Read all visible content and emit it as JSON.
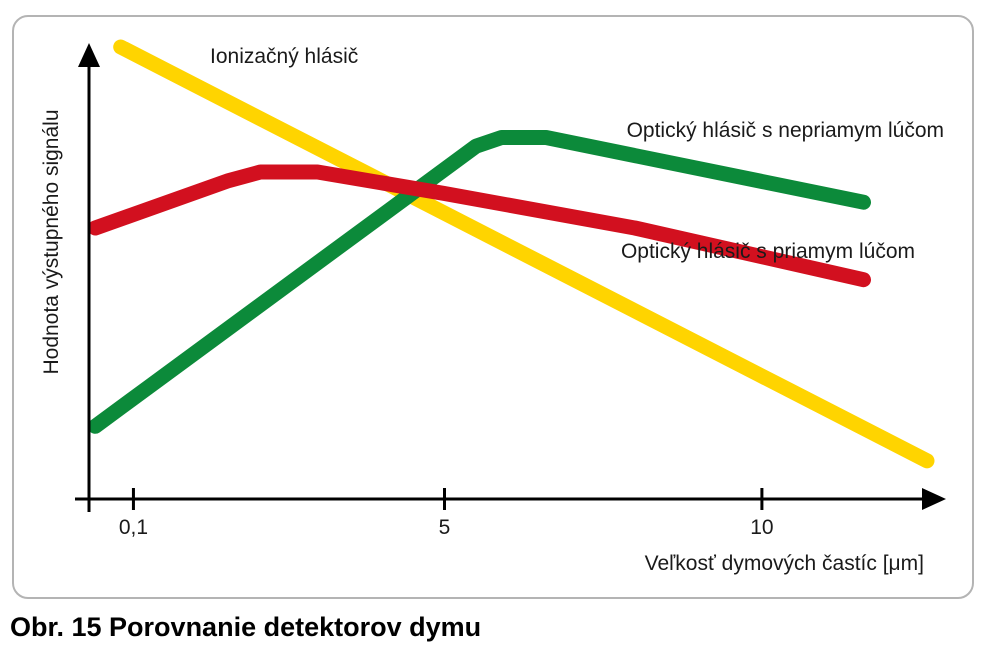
{
  "chart_data": {
    "type": "line",
    "title": "",
    "xlabel": "Veľkosť dymových častíc [μm]",
    "ylabel": "Hodnota výstupného signálu",
    "x_ticks": [
      {
        "value": 0.1,
        "label": "0,1"
      },
      {
        "value": 5,
        "label": "5"
      },
      {
        "value": 10,
        "label": "10"
      }
    ],
    "xlim": [
      -0.6,
      12.9
    ],
    "ylim": [
      0,
      100
    ],
    "y_tick_labels": false,
    "grid": false,
    "series": [
      {
        "name": "Ionizačný hlásič",
        "color": "#ffd400",
        "x": [
          -0.1,
          12.6
        ],
        "y": [
          100,
          4
        ]
      },
      {
        "name": "Optický hlásič s nepriamym lúčom",
        "color": "#0c8a3a",
        "x": [
          -0.5,
          5.5,
          5.9,
          6.6,
          11.6
        ],
        "y": [
          12,
          77,
          79,
          79,
          64
        ]
      },
      {
        "name": "Optický hlásič s priamym lúčom",
        "color": "#d2101f",
        "x": [
          -0.5,
          1.6,
          2.1,
          3.0,
          5.0,
          8.0,
          11.6
        ],
        "y": [
          58,
          69,
          71,
          71,
          66,
          58,
          46
        ]
      }
    ]
  },
  "caption": "Obr. 15 Porovnanie detektorov dymu"
}
